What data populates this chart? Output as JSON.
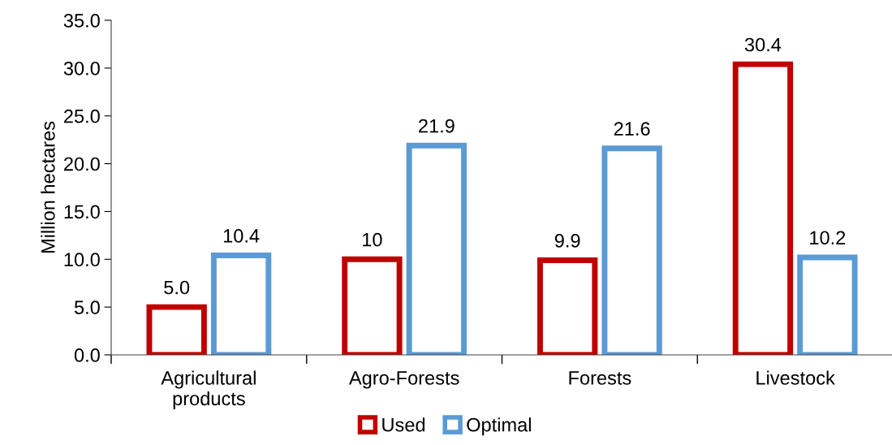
{
  "chart_data": {
    "type": "bar",
    "ylabel": "Million hectares",
    "categories": [
      "Agricultural\nproducts",
      "Agro-Forests",
      "Forests",
      "Livestock"
    ],
    "series": [
      {
        "name": "Used",
        "color": "#c00000",
        "values": [
          5.0,
          10,
          9.9,
          30.4
        ],
        "value_labels": [
          "5.0",
          "10",
          "9.9",
          "30.4"
        ]
      },
      {
        "name": "Optimal",
        "color": "#5b9bd5",
        "values": [
          10.4,
          21.9,
          21.6,
          10.2
        ],
        "value_labels": [
          "10.4",
          "21.9",
          "21.6",
          "10.2"
        ]
      }
    ],
    "ylim": [
      0,
      35
    ],
    "yticks": [
      {
        "value": 0,
        "label": "0.0"
      },
      {
        "value": 5,
        "label": "5.0"
      },
      {
        "value": 10,
        "label": "10.0"
      },
      {
        "value": 15,
        "label": "15.0"
      },
      {
        "value": 20,
        "label": "20.0"
      },
      {
        "value": 25,
        "label": "25.0"
      },
      {
        "value": 30,
        "label": "30.0"
      },
      {
        "value": 35,
        "label": "35.0"
      }
    ],
    "legend": "bottom"
  }
}
